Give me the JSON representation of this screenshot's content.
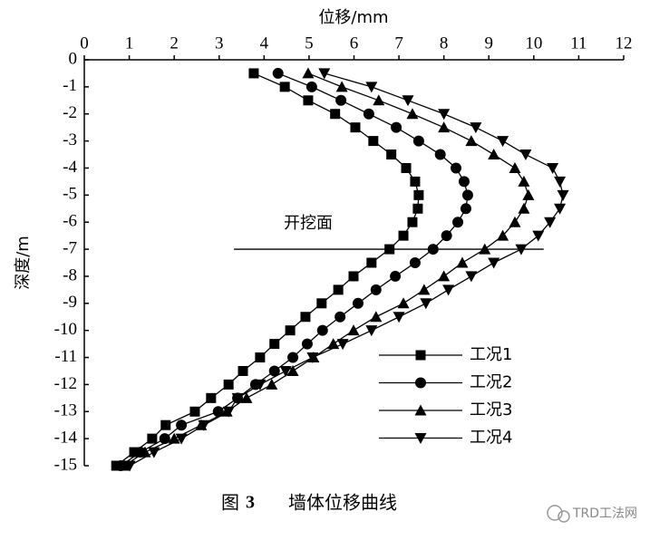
{
  "chart_data": {
    "type": "line",
    "x_label": "位移/mm",
    "y_label": "深度/m",
    "xlim": [
      0,
      12
    ],
    "xticks": [
      0,
      1,
      2,
      3,
      4,
      5,
      6,
      7,
      8,
      9,
      10,
      11,
      12
    ],
    "ylim": [
      -15,
      0
    ],
    "yticks": [
      0,
      -1,
      -2,
      -3,
      -4,
      -5,
      -6,
      -7,
      -8,
      -9,
      -10,
      -11,
      -12,
      -13,
      -14,
      -15
    ],
    "y": [
      -0.5,
      -1,
      -1.5,
      -2,
      -2.5,
      -3,
      -3.5,
      -4,
      -4.5,
      -5,
      -5.5,
      -6,
      -6.5,
      -7,
      -7.5,
      -8,
      -8.5,
      -9,
      -9.5,
      -10,
      -10.5,
      -11,
      -11.5,
      -12,
      -12.5,
      -13,
      -13.5,
      -14,
      -14.5,
      -15
    ],
    "series": [
      {
        "name": "工况1",
        "color": "#000000",
        "marker": "square",
        "values": [
          3.77,
          4.46,
          4.98,
          5.58,
          6.03,
          6.43,
          6.83,
          7.16,
          7.36,
          7.44,
          7.42,
          7.3,
          7.1,
          6.79,
          6.39,
          5.99,
          5.65,
          5.28,
          4.92,
          4.58,
          4.23,
          3.91,
          3.53,
          3.21,
          2.82,
          2.46,
          1.81,
          1.51,
          1.11,
          0.71
        ]
      },
      {
        "name": "工况2",
        "color": "#000000",
        "marker": "circle",
        "values": [
          4.31,
          5.06,
          5.71,
          6.33,
          6.94,
          7.44,
          7.92,
          8.27,
          8.45,
          8.53,
          8.49,
          8.31,
          8.06,
          7.76,
          7.36,
          6.92,
          6.49,
          6.09,
          5.69,
          5.3,
          4.96,
          4.64,
          4.23,
          3.81,
          3.41,
          2.98,
          2.16,
          1.79,
          1.25,
          0.81
        ]
      },
      {
        "name": "工况3",
        "color": "#000000",
        "marker": "triangle-up",
        "values": [
          4.98,
          5.73,
          6.55,
          7.3,
          8.0,
          8.61,
          9.11,
          9.58,
          9.78,
          9.88,
          9.78,
          9.58,
          9.31,
          8.91,
          8.41,
          8.0,
          7.56,
          7.1,
          6.49,
          5.99,
          5.54,
          5.1,
          4.64,
          4.17,
          3.61,
          3.17,
          2.6,
          2.0,
          1.35,
          0.89
        ]
      },
      {
        "name": "工况4",
        "color": "#000000",
        "marker": "triangle-down",
        "values": [
          5.34,
          6.39,
          7.2,
          8.0,
          8.71,
          9.31,
          9.82,
          10.42,
          10.58,
          10.65,
          10.58,
          10.36,
          10.1,
          9.72,
          9.11,
          8.61,
          8.1,
          7.6,
          7.0,
          6.39,
          5.75,
          5.08,
          4.48,
          3.91,
          3.41,
          3.21,
          2.66,
          2.16,
          1.55,
          1.01
        ]
      }
    ],
    "annotation": {
      "text": "开挖面",
      "y": -7,
      "x": [
        3.33,
        10.22
      ]
    },
    "legend": "lower-right",
    "caption": {
      "prefix": "图",
      "number": "3",
      "text": "墙体位移曲线"
    }
  },
  "watermark": "TRD工法网"
}
